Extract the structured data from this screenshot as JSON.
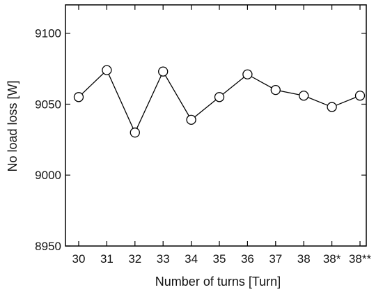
{
  "chart_data": {
    "type": "line",
    "title": "",
    "xlabel": "Number of turns [Turn]",
    "ylabel": "No load loss [W]",
    "categories": [
      "30",
      "31",
      "32",
      "33",
      "34",
      "35",
      "36",
      "37",
      "38",
      "38*",
      "38**"
    ],
    "series": [
      {
        "values": [
          9055,
          9074,
          9030,
          9073,
          9039,
          9055,
          9071,
          9060,
          9056,
          9048,
          9056
        ],
        "marker": "open-circle",
        "color": "#000000"
      }
    ],
    "ylim": [
      8950,
      9120
    ],
    "yticks": [
      8950,
      9000,
      9050,
      9100
    ],
    "grid": false,
    "legend": "none"
  }
}
